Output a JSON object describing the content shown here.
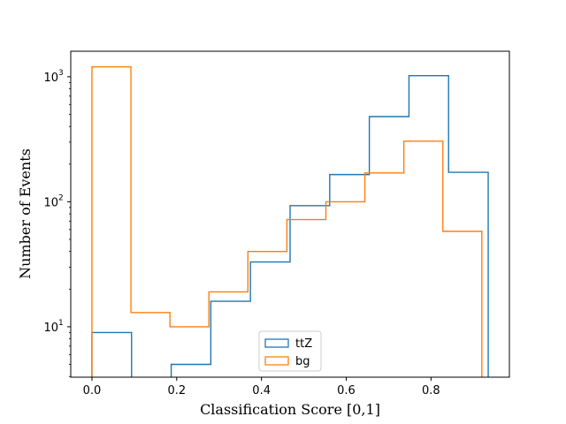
{
  "chart_data": {
    "type": "histogram-step",
    "title": "",
    "xlabel": "Classification Score [0,1]",
    "ylabel": "Number of Events",
    "xlim": [
      -0.05,
      0.985
    ],
    "ylim": [
      3.95,
      1600
    ],
    "yscale": "log",
    "grid": false,
    "legend_position": "lower-center",
    "x_ticks": [
      {
        "value": 0.0,
        "label": "0.0"
      },
      {
        "value": 0.2,
        "label": "0.2"
      },
      {
        "value": 0.4,
        "label": "0.4"
      },
      {
        "value": 0.6,
        "label": "0.6"
      },
      {
        "value": 0.8,
        "label": "0.8"
      }
    ],
    "y_ticks": [
      {
        "value": 10,
        "label": "10",
        "exp": "1"
      },
      {
        "value": 100,
        "label": "10",
        "exp": "2"
      },
      {
        "value": 1000,
        "label": "10",
        "exp": "3"
      }
    ],
    "series": [
      {
        "name": "ttZ",
        "color": "#1f77b4",
        "edges": [
          0.0,
          0.0935,
          0.187,
          0.2805,
          0.374,
          0.4675,
          0.561,
          0.6545,
          0.748,
          0.8415,
          0.935
        ],
        "values": [
          9,
          0,
          5,
          16,
          33,
          93,
          165,
          480,
          1020,
          172
        ]
      },
      {
        "name": "bg",
        "color": "#ff7f0e",
        "edges": [
          0.0,
          0.092,
          0.184,
          0.276,
          0.368,
          0.46,
          0.552,
          0.644,
          0.736,
          0.828,
          0.92
        ],
        "values": [
          1200,
          13,
          10,
          19,
          40,
          72,
          100,
          170,
          305,
          58
        ]
      }
    ]
  }
}
